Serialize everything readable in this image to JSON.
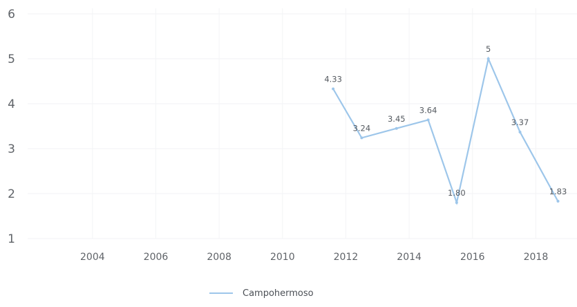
{
  "chart_data": {
    "type": "line",
    "title": "",
    "xlabel": "",
    "ylabel": "",
    "x_ticks": [
      "2004",
      "2006",
      "2008",
      "2010",
      "2012",
      "2014",
      "2016",
      "2018"
    ],
    "y_ticks": [
      "1",
      "2",
      "3",
      "4",
      "5",
      "6"
    ],
    "xlim": [
      2003,
      2019.3
    ],
    "ylim": [
      1,
      6
    ],
    "grid": true,
    "legend_position": "bottom",
    "series": [
      {
        "name": "Campohermoso",
        "color": "#9dc6ea",
        "x": [
          2011.6,
          2012.5,
          2013.6,
          2014.6,
          2015.5,
          2016.5,
          2017.5,
          2018.7
        ],
        "y": [
          4.33,
          3.24,
          3.45,
          3.64,
          1.8,
          5,
          3.37,
          1.83
        ],
        "labels": [
          "4.33",
          "3.24",
          "3.45",
          "3.64",
          "1.80",
          "5",
          "3.37",
          "1.83"
        ]
      }
    ]
  }
}
